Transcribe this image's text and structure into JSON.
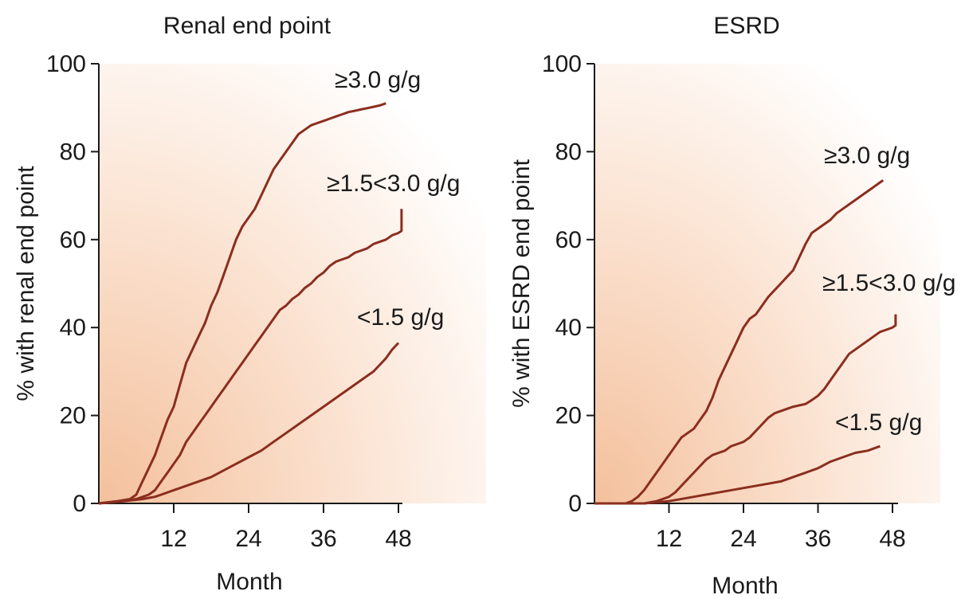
{
  "chart_data": [
    {
      "type": "line",
      "title": "Renal end point",
      "xlabel": "Month",
      "ylabel": "% with renal end point",
      "xlim": [
        0,
        49
      ],
      "ylim": [
        0,
        100
      ],
      "xticks": [
        12,
        24,
        36,
        48
      ],
      "yticks": [
        0,
        20,
        40,
        60,
        80,
        100
      ],
      "colors": {
        "line": "#8b2e1f",
        "fill_from": "#f4c09c",
        "fill_to": "#ffffff"
      },
      "series": [
        {
          "name": "≥3.0 g/g",
          "x": [
            0,
            3,
            5,
            6,
            7,
            8,
            9,
            10,
            11,
            12,
            13,
            14,
            15,
            16,
            17,
            18,
            19,
            20,
            21,
            22,
            23,
            24,
            25,
            26,
            27,
            28,
            29,
            30,
            31,
            32,
            33,
            34,
            35,
            36,
            37,
            38,
            39,
            40,
            41,
            42,
            43,
            44,
            45,
            46
          ],
          "y": [
            0,
            0.5,
            1,
            2,
            5,
            8,
            11,
            15,
            19,
            22,
            27,
            32,
            35,
            38,
            41,
            45,
            48,
            52,
            56,
            60,
            63,
            65,
            67,
            70,
            73,
            76,
            78,
            80,
            82,
            84,
            85,
            86,
            86.5,
            87,
            87.5,
            88,
            88.5,
            89,
            89.3,
            89.6,
            89.9,
            90.2,
            90.5,
            91
          ]
        },
        {
          "name": "≥1.5<3.0 g/g",
          "x": [
            0,
            3,
            6,
            8,
            9,
            10,
            11,
            12,
            13,
            14,
            15,
            16,
            17,
            18,
            19,
            20,
            21,
            22,
            23,
            24,
            25,
            26,
            27,
            28,
            29,
            30,
            31,
            32,
            33,
            34,
            35,
            36,
            37,
            38,
            39,
            40,
            41,
            42,
            43,
            44,
            45,
            46,
            47,
            48,
            48.5,
            48.5
          ],
          "y": [
            0,
            0.5,
            1,
            2,
            3,
            5,
            7,
            9,
            11,
            14,
            16,
            18,
            20,
            22,
            24,
            26,
            28,
            30,
            32,
            34,
            36,
            38,
            40,
            42,
            44,
            45,
            46.5,
            47.5,
            49,
            50,
            51.5,
            52.5,
            54,
            55,
            55.5,
            56,
            57,
            57.5,
            58,
            59,
            59.5,
            60,
            61,
            61.5,
            62,
            67
          ]
        },
        {
          "name": "<1.5 g/g",
          "x": [
            0,
            4,
            7,
            9,
            10,
            12,
            14,
            16,
            18,
            20,
            22,
            24,
            26,
            28,
            30,
            32,
            34,
            36,
            38,
            40,
            42,
            43,
            44,
            45,
            46,
            47,
            48
          ],
          "y": [
            0,
            0.5,
            1,
            1.5,
            2,
            3,
            4,
            5,
            6,
            7.5,
            9,
            10.5,
            12,
            14,
            16,
            18,
            20,
            22,
            24,
            26,
            28,
            29,
            30,
            31.5,
            33,
            35,
            36.5
          ]
        }
      ],
      "annotations": [
        {
          "text": "≥3.0 g/g",
          "series_index": 0
        },
        {
          "text": "≥1.5<3.0 g/g",
          "series_index": 1
        },
        {
          "text": "<1.5 g/g",
          "series_index": 2
        }
      ]
    },
    {
      "type": "line",
      "title": "ESRD",
      "xlabel": "Month",
      "ylabel": "% with ESRD end point",
      "xlim": [
        0,
        49
      ],
      "ylim": [
        0,
        100
      ],
      "xticks": [
        12,
        24,
        36,
        48
      ],
      "yticks": [
        0,
        20,
        40,
        60,
        80,
        100
      ],
      "colors": {
        "line": "#8b2e1f",
        "fill_from": "#f4c09c",
        "fill_to": "#ffffff"
      },
      "series": [
        {
          "name": "≥3.0 g/g",
          "x": [
            0,
            5,
            6,
            7,
            8,
            9,
            10,
            11,
            12,
            13,
            14,
            15,
            16,
            17,
            18,
            19,
            20,
            21,
            22,
            23,
            24,
            25,
            26,
            27,
            28,
            29,
            30,
            31,
            32,
            33,
            34,
            35,
            36,
            37,
            38,
            39,
            40,
            41,
            42,
            43,
            44,
            45,
            46,
            46.5
          ],
          "y": [
            0,
            0,
            0.5,
            1.5,
            3,
            5,
            7,
            9,
            11,
            13,
            15,
            16,
            17,
            19,
            21,
            24,
            28,
            31,
            34,
            37,
            40,
            42,
            43,
            45,
            47,
            48.5,
            50,
            51.5,
            53,
            56,
            59,
            61.5,
            62.5,
            63.5,
            64.5,
            66,
            67,
            68,
            69,
            70,
            71,
            72,
            73,
            73.5
          ]
        },
        {
          "name": "≥1.5<3.0 g/g",
          "x": [
            0,
            8,
            10,
            11,
            12,
            13,
            14,
            15,
            16,
            17,
            18,
            19,
            20,
            21,
            22,
            23,
            24,
            25,
            26,
            27,
            28,
            29,
            30,
            31,
            32,
            33,
            34,
            35,
            36,
            37,
            38,
            39,
            40,
            41,
            42,
            43,
            44,
            45,
            46,
            47,
            48,
            48.5,
            48.5
          ],
          "y": [
            0,
            0,
            0.5,
            1,
            1.5,
            2.5,
            4,
            5.5,
            7,
            8.5,
            10,
            11,
            11.5,
            12,
            13,
            13.5,
            14,
            15,
            16.5,
            18,
            19.5,
            20.5,
            21,
            21.5,
            22,
            22.3,
            22.6,
            23.5,
            24.5,
            26,
            28,
            30,
            32,
            34,
            35,
            36,
            37,
            38,
            39,
            39.5,
            40,
            40.5,
            43
          ]
        },
        {
          "name": "<1.5 g/g",
          "x": [
            0,
            8,
            12,
            16,
            20,
            24,
            28,
            30,
            32,
            34,
            36,
            38,
            40,
            42,
            44,
            46
          ],
          "y": [
            0,
            0,
            0.5,
            1.5,
            2.5,
            3.5,
            4.5,
            5,
            6,
            7,
            8,
            9.5,
            10.5,
            11.5,
            12,
            13
          ]
        }
      ],
      "annotations": [
        {
          "text": "≥3.0 g/g",
          "series_index": 0
        },
        {
          "text": "≥1.5<3.0 g/g",
          "series_index": 1
        },
        {
          "text": "<1.5 g/g",
          "series_index": 2
        }
      ]
    }
  ]
}
